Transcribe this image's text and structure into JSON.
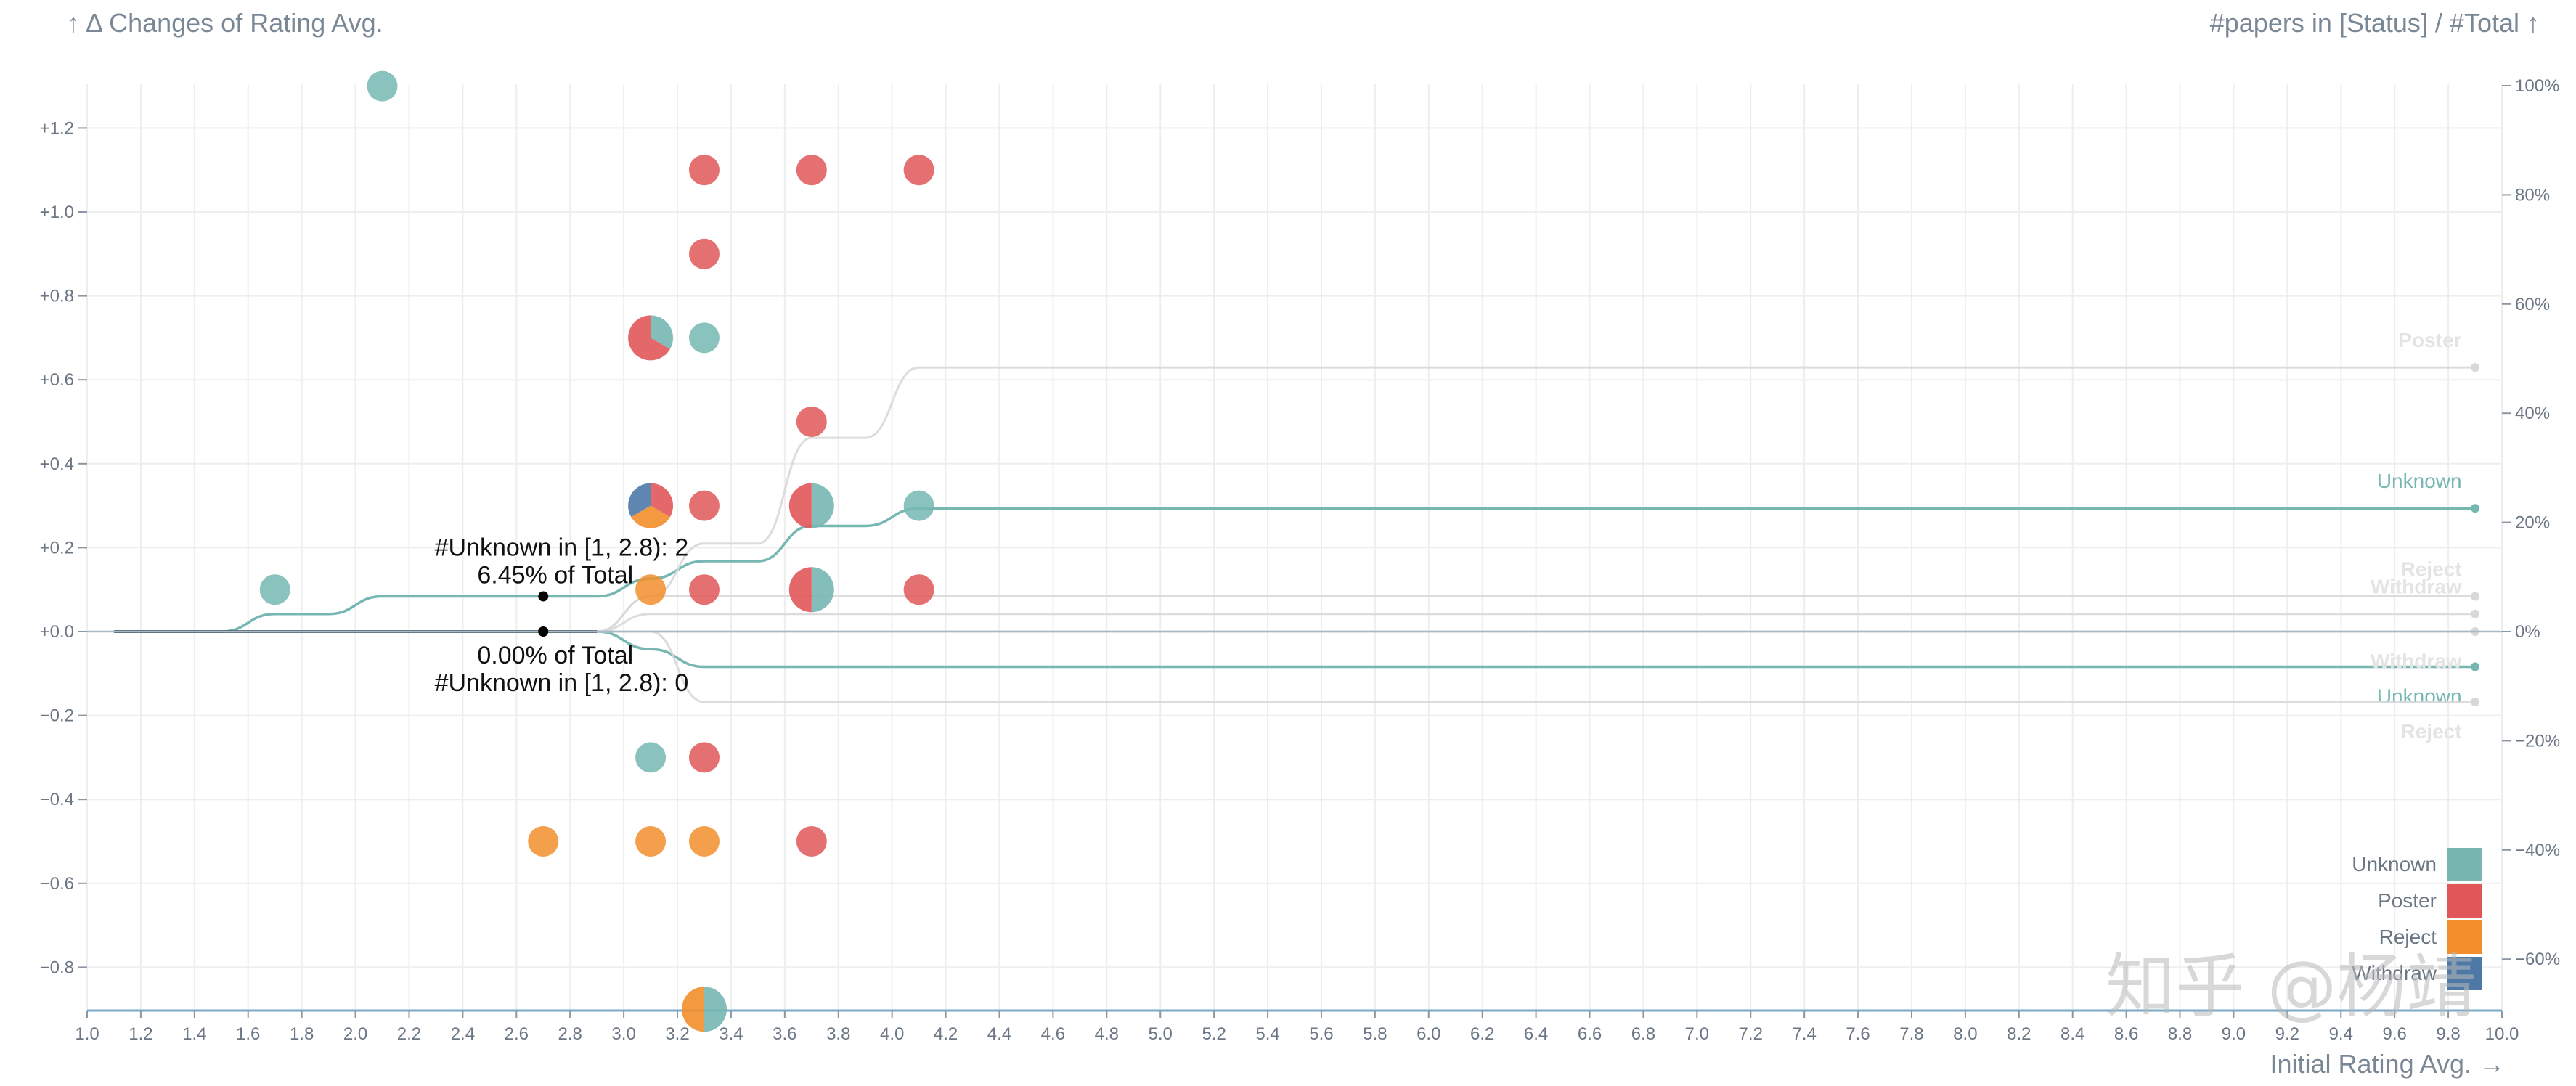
{
  "chart_data": {
    "type": "scatter",
    "title_left": "↑ Δ Changes of Rating Avg.",
    "title_right": "#papers in [Status] / #Total ↑",
    "xlabel": "Initial Rating Avg. →",
    "xlim": [
      1.0,
      10.0
    ],
    "ylim_left": [
      -0.9,
      1.3
    ],
    "ylim_right": [
      -0.7,
      1.0
    ],
    "x_ticks": [
      "1.0",
      "1.2",
      "1.4",
      "1.6",
      "1.8",
      "2.0",
      "2.2",
      "2.4",
      "2.6",
      "2.8",
      "3.0",
      "3.2",
      "3.4",
      "3.6",
      "3.8",
      "4.0",
      "4.2",
      "4.4",
      "4.6",
      "4.8",
      "5.0",
      "5.2",
      "5.4",
      "5.6",
      "5.8",
      "6.0",
      "6.2",
      "6.4",
      "6.6",
      "6.8",
      "7.0",
      "7.2",
      "7.4",
      "7.6",
      "7.8",
      "8.0",
      "8.2",
      "8.4",
      "8.6",
      "8.8",
      "9.0",
      "9.2",
      "9.4",
      "9.6",
      "9.8",
      "10.0"
    ],
    "y_ticks_left": [
      "+1.2",
      "+1.0",
      "+0.8",
      "+0.6",
      "+0.4",
      "+0.2",
      "+0.0",
      "−0.2",
      "−0.4",
      "−0.6",
      "−0.8"
    ],
    "y_ticks_left_values": [
      1.2,
      1.0,
      0.8,
      0.6,
      0.4,
      0.2,
      0.0,
      -0.2,
      -0.4,
      -0.6,
      -0.8
    ],
    "y_ticks_right": [
      "100%",
      "80%",
      "60%",
      "40%",
      "20%",
      "0%",
      "−20%",
      "−40%",
      "−60%"
    ],
    "y_ticks_right_values": [
      1.0,
      0.8,
      0.6,
      0.4,
      0.2,
      0.0,
      -0.2,
      -0.4,
      -0.6
    ],
    "colors": {
      "Unknown": "#76b7b2",
      "Poster": "#e15759",
      "Reject": "#f28e2b",
      "Withdraw": "#4e79a7"
    },
    "legend": [
      "Unknown",
      "Poster",
      "Reject",
      "Withdraw"
    ],
    "points": [
      {
        "x": 1.7,
        "y": 0.1,
        "shares": {
          "Unknown": 1
        }
      },
      {
        "x": 2.1,
        "y": 1.3,
        "shares": {
          "Unknown": 1
        }
      },
      {
        "x": 2.7,
        "y": -0.5,
        "shares": {
          "Reject": 1
        }
      },
      {
        "x": 3.1,
        "y": 0.7,
        "shares": {
          "Unknown": 1,
          "Poster": 2
        }
      },
      {
        "x": 3.1,
        "y": 0.3,
        "shares": {
          "Poster": 1,
          "Reject": 1,
          "Withdraw": 1
        }
      },
      {
        "x": 3.1,
        "y": 0.1,
        "shares": {
          "Reject": 1
        }
      },
      {
        "x": 3.1,
        "y": -0.3,
        "shares": {
          "Unknown": 1
        }
      },
      {
        "x": 3.1,
        "y": -0.5,
        "shares": {
          "Reject": 1
        }
      },
      {
        "x": 3.3,
        "y": 1.1,
        "shares": {
          "Poster": 1
        }
      },
      {
        "x": 3.3,
        "y": 0.9,
        "shares": {
          "Poster": 1
        }
      },
      {
        "x": 3.3,
        "y": 0.7,
        "shares": {
          "Unknown": 1
        }
      },
      {
        "x": 3.3,
        "y": 0.3,
        "shares": {
          "Poster": 1
        }
      },
      {
        "x": 3.3,
        "y": 0.1,
        "shares": {
          "Poster": 1
        }
      },
      {
        "x": 3.3,
        "y": -0.3,
        "shares": {
          "Poster": 1
        }
      },
      {
        "x": 3.3,
        "y": -0.5,
        "shares": {
          "Reject": 1
        }
      },
      {
        "x": 3.3,
        "y": -0.9,
        "shares": {
          "Unknown": 1,
          "Reject": 1
        }
      },
      {
        "x": 3.7,
        "y": 1.1,
        "shares": {
          "Poster": 1
        }
      },
      {
        "x": 3.7,
        "y": 0.5,
        "shares": {
          "Poster": 1
        }
      },
      {
        "x": 3.7,
        "y": 0.3,
        "shares": {
          "Unknown": 1,
          "Poster": 1
        }
      },
      {
        "x": 3.7,
        "y": 0.1,
        "shares": {
          "Unknown": 1,
          "Poster": 1
        }
      },
      {
        "x": 3.7,
        "y": -0.5,
        "shares": {
          "Poster": 1
        }
      },
      {
        "x": 4.1,
        "y": 1.1,
        "shares": {
          "Poster": 1
        }
      },
      {
        "x": 4.1,
        "y": 0.3,
        "shares": {
          "Unknown": 1
        }
      },
      {
        "x": 4.1,
        "y": 0.1,
        "shares": {
          "Poster": 1
        }
      }
    ],
    "cumulative_lines": [
      {
        "status": "Unknown",
        "direction": "up",
        "end_label": "Unknown",
        "active": true,
        "x": [
          1.1,
          1.5,
          1.7,
          1.9,
          2.1,
          2.7,
          2.9,
          3.1,
          3.3,
          3.5,
          3.7,
          3.9,
          4.1,
          4.3,
          9.9
        ],
        "y": [
          0.0,
          0.0,
          0.03226,
          0.03226,
          0.06452,
          0.06452,
          0.06452,
          0.09677,
          0.12903,
          0.12903,
          0.19355,
          0.19355,
          0.22581,
          0.22581,
          0.22581
        ]
      },
      {
        "status": "Unknown",
        "direction": "down",
        "end_label": "Unknown",
        "active": true,
        "x": [
          1.1,
          2.9,
          3.1,
          3.3,
          3.5,
          3.7,
          9.9
        ],
        "y": [
          0.0,
          0.0,
          -0.03226,
          -0.06452,
          -0.06452,
          -0.06452,
          -0.06452
        ]
      },
      {
        "status": "Poster",
        "direction": "up",
        "end_label": "Poster",
        "active": false,
        "x": [
          1.1,
          2.9,
          3.1,
          3.3,
          3.5,
          3.7,
          3.9,
          4.1,
          4.3,
          9.9
        ],
        "y": [
          0.0,
          0.0,
          0.06452,
          0.16129,
          0.16129,
          0.35484,
          0.35484,
          0.48387,
          0.48387,
          0.48387
        ]
      },
      {
        "status": "Poster",
        "direction": "down",
        "end_label": "Reject",
        "active": false,
        "x": [
          1.1,
          2.9,
          3.1,
          3.3,
          3.5,
          3.7,
          9.9
        ],
        "y": [
          0.0,
          0.0,
          0.0,
          -0.12903,
          -0.12903,
          -0.12903,
          -0.12903
        ]
      },
      {
        "status": "Reject",
        "direction": "up",
        "end_label": "Reject",
        "active": false,
        "x": [
          1.1,
          2.9,
          3.1,
          3.3,
          9.9
        ],
        "y": [
          0.0,
          0.0,
          0.06452,
          0.06452,
          0.06452
        ]
      },
      {
        "status": "Withdraw",
        "direction": "up",
        "end_label": "Withdraw",
        "active": false,
        "x": [
          1.1,
          2.9,
          3.1,
          3.3,
          9.9
        ],
        "y": [
          0.0,
          0.0,
          0.03226,
          0.03226,
          0.03226
        ]
      },
      {
        "status": "Reject",
        "direction": "down",
        "end_label": "Withdraw",
        "active": false,
        "x": [
          1.1,
          9.9
        ],
        "y": [
          0.0,
          0.0
        ]
      }
    ],
    "annotations": [
      {
        "x": 2.7,
        "y_right": 0.06452,
        "line1": "#Unknown in [1, 2.8): 2",
        "line2": "6.45% of Total",
        "position": "above"
      },
      {
        "x": 2.7,
        "y_right": 0.0,
        "line1": "0.00% of Total",
        "line2": "#Unknown in [1, 2.8): 0",
        "position": "below"
      }
    ]
  },
  "watermark": "知乎 @杨靖"
}
